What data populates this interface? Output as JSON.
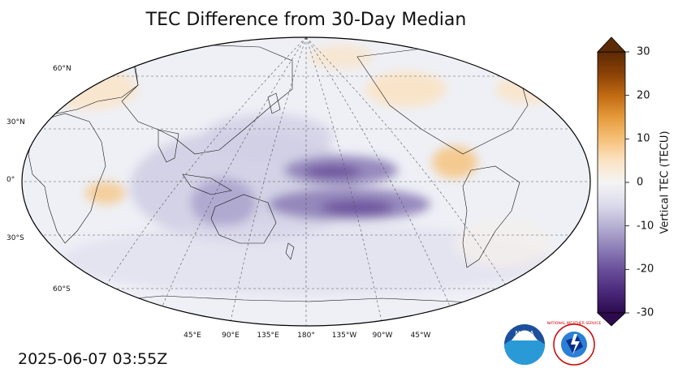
{
  "title": "TEC Difference from 30-Day Median",
  "timestamp": "2025-06-07 03:55Z",
  "colorbar": {
    "label": "Vertical TEC (TECU)",
    "min": -30,
    "max": 30,
    "ticks": [
      30,
      20,
      10,
      0,
      -10,
      -20,
      -30
    ],
    "tick_labels": [
      "30",
      "20",
      "10",
      "0",
      "-10",
      "-20",
      "-30"
    ],
    "colors": [
      "#2d0a4e",
      "#4a2a7a",
      "#6a4f9b",
      "#8e80b8",
      "#b7b1d4",
      "#dddcec",
      "#f4f4f4",
      "#fbe3c4",
      "#f6c078",
      "#e59a3a",
      "#c06a12",
      "#8a4106",
      "#5c2a04"
    ]
  },
  "map": {
    "projection": "Robinson",
    "central_longitude": 180,
    "lat_labels": [
      "60°N",
      "30°N",
      "0°",
      "30°S",
      "60°S"
    ],
    "lon_labels": [
      "45°E",
      "90°E",
      "135°E",
      "180°",
      "135°W",
      "90°W",
      "45°W"
    ],
    "background_color": "#eef0f6"
  },
  "logos": {
    "noaa_text": "NOAA",
    "nws_text": "NATIONAL WEATHER SERVICE"
  }
}
